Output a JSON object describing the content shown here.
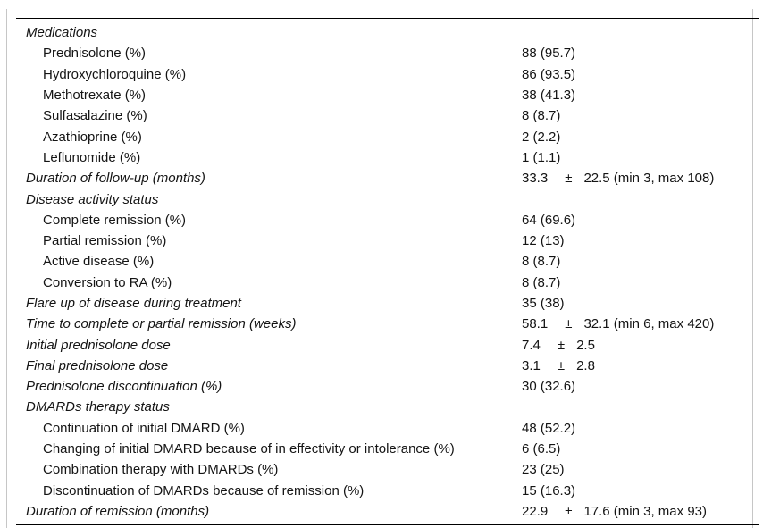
{
  "page": {
    "background": "#ffffff",
    "frame_color": "#c6c6c6",
    "rule_color": "#000000",
    "text_color": "#141414"
  },
  "table": {
    "rows": [
      {
        "label": "Medications",
        "kind": "section",
        "value": ""
      },
      {
        "label": "Prednisolone (%)",
        "kind": "item",
        "value": "88 (95.7)"
      },
      {
        "label": "Hydroxychloroquine (%)",
        "kind": "item",
        "value": "86 (93.5)"
      },
      {
        "label": "Methotrexate (%)",
        "kind": "item",
        "value": "38 (41.3)"
      },
      {
        "label": "Sulfasalazine (%)",
        "kind": "item",
        "value": "8 (8.7)"
      },
      {
        "label": "Azathioprine (%)",
        "kind": "item",
        "value": "2 (2.2)"
      },
      {
        "label": "Leflunomide (%)",
        "kind": "item",
        "value": "1 (1.1)"
      },
      {
        "label": "Duration of follow-up (months)",
        "kind": "section",
        "value_parts": [
          "33.3",
          "±",
          "22.5 (min 3, max 108)"
        ]
      },
      {
        "label": "Disease activity status",
        "kind": "section",
        "value": ""
      },
      {
        "label": "Complete remission (%)",
        "kind": "item",
        "value": "64 (69.6)"
      },
      {
        "label": "Partial remission (%)",
        "kind": "item",
        "value": "12 (13)"
      },
      {
        "label": "Active disease (%)",
        "kind": "item",
        "value": "8 (8.7)"
      },
      {
        "label": "Conversion to RA (%)",
        "kind": "item",
        "value": "8 (8.7)"
      },
      {
        "label": "Flare up of disease during treatment",
        "kind": "section",
        "value": "35 (38)"
      },
      {
        "label": "Time to complete or partial remission (weeks)",
        "kind": "section",
        "value_parts": [
          "58.1",
          "±",
          "32.1 (min 6, max 420)"
        ]
      },
      {
        "label": "Initial prednisolone dose",
        "kind": "section",
        "value_parts": [
          "7.4",
          "±",
          "2.5"
        ]
      },
      {
        "label": "Final prednisolone dose",
        "kind": "section",
        "value_parts": [
          "3.1",
          "±",
          "2.8"
        ]
      },
      {
        "label": "Prednisolone discontinuation (%)",
        "kind": "section",
        "value": "30 (32.6)"
      },
      {
        "label": "DMARDs therapy status",
        "kind": "section",
        "value": ""
      },
      {
        "label": "Continuation of initial DMARD (%)",
        "kind": "item",
        "value": "48 (52.2)"
      },
      {
        "label": "Changing of initial DMARD because of in effectivity or intolerance (%)",
        "kind": "item",
        "value": "6 (6.5)"
      },
      {
        "label": "Combination therapy with DMARDs (%)",
        "kind": "item",
        "value": "23 (25)"
      },
      {
        "label": "Discontinuation of DMARDs because of remission (%)",
        "kind": "item",
        "value": "15 (16.3)"
      },
      {
        "label": "Duration of remission (months)",
        "kind": "section",
        "value_parts": [
          "22.9",
          "±",
          "17.6 (min 3, max 93)"
        ]
      }
    ]
  }
}
